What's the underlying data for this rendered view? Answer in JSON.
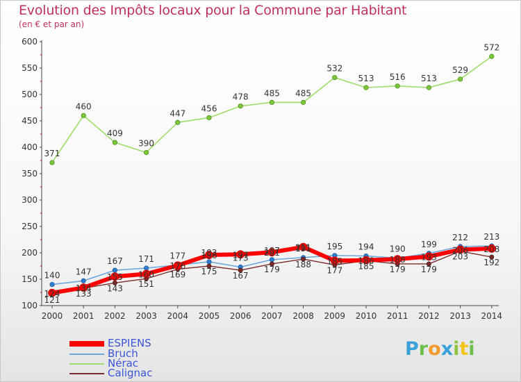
{
  "title": "Evolution des Impôts locaux pour la Commune par Habitant",
  "subtitle": "(en € et par an)",
  "brand": {
    "letters": [
      "P",
      "r",
      "o",
      "x",
      "i",
      "t",
      "i"
    ],
    "colors": [
      "#3aa0d8",
      "#6cbf4a",
      "#f29a2e",
      "#3aa0d8",
      "#8fc640",
      "#f0c41b",
      "#6cbf4a"
    ]
  },
  "chart_data": {
    "type": "line",
    "title": "Evolution des Impôts locaux pour la Commune par Habitant",
    "ylabel": "(en € et par an)",
    "xlabel": "",
    "x": [
      "2000",
      "2001",
      "2002",
      "2003",
      "2004",
      "2005",
      "2006",
      "2007",
      "2008",
      "2009",
      "2010",
      "2011",
      "2012",
      "2013",
      "2014"
    ],
    "yticks": [
      "100",
      "150",
      "200",
      "250",
      "300",
      "350",
      "400",
      "450",
      "500",
      "550",
      "600"
    ],
    "ylim": [
      100,
      600
    ],
    "grid": false,
    "legend_position": "bottom-left",
    "series": [
      {
        "name": "ESPIENS",
        "color": "#ff0000",
        "values": [
          124,
          134,
          155,
          160,
          176,
          196,
          197,
          201,
          211,
          185,
          186,
          188,
          193,
          206,
          208
        ],
        "labels": [
          "124",
          "134",
          "155",
          "160",
          "176",
          "196",
          "197",
          "201",
          "211",
          "185",
          "186",
          "188",
          "193",
          "206",
          "208"
        ]
      },
      {
        "name": "Bruch",
        "color": "#5b9bd5",
        "values": [
          140,
          147,
          167,
          171,
          177,
          183,
          173,
          187,
          191,
          195,
          194,
          190,
          199,
          212,
          213
        ],
        "labels": [
          "140",
          "147",
          "167",
          "171",
          "177",
          "183",
          "173",
          "187",
          "191",
          "195",
          "194",
          "190",
          "199",
          "212",
          "213"
        ]
      },
      {
        "name": "Nérac",
        "color": "#8fd14f",
        "values": [
          371,
          460,
          409,
          390,
          447,
          456,
          478,
          485,
          485,
          532,
          513,
          516,
          513,
          529,
          572
        ],
        "labels": [
          "371",
          "460",
          "409",
          "390",
          "447",
          "456",
          "478",
          "485",
          "485",
          "532",
          "513",
          "516",
          "513",
          "529",
          "572"
        ]
      },
      {
        "name": "Calignac",
        "color": "#7b2d2d",
        "values": [
          121,
          133,
          143,
          151,
          169,
          175,
          167,
          179,
          188,
          177,
          185,
          179,
          179,
          203,
          192
        ],
        "labels": [
          "121",
          "133",
          "143",
          "151",
          "169",
          "175",
          "167",
          "179",
          "188",
          "177",
          "185",
          "179",
          "179",
          "203",
          "192"
        ]
      }
    ]
  }
}
